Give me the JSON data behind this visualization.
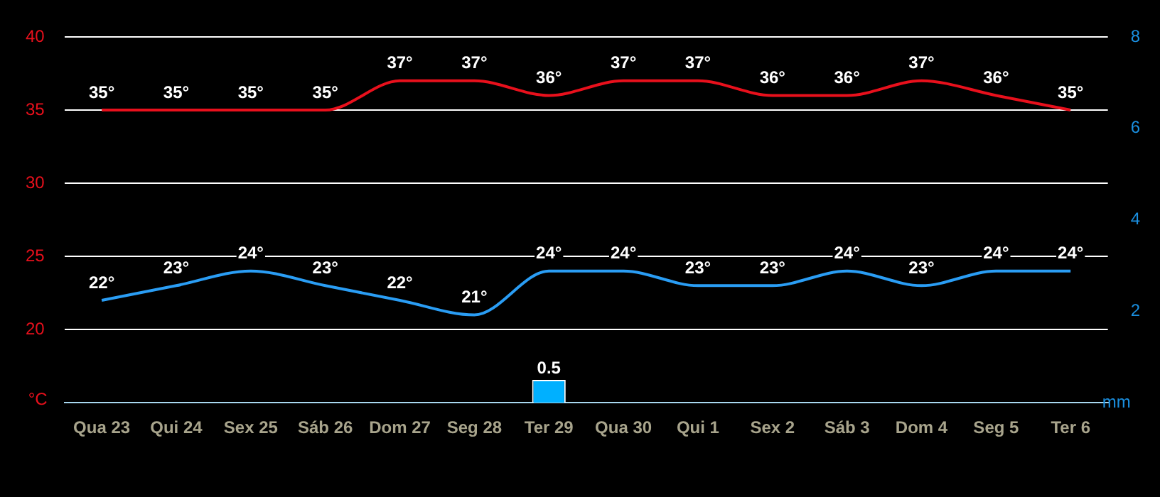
{
  "chart_data": {
    "type": "line",
    "ylabel": "°C",
    "y2label": "mm",
    "categories": [
      "Qua 23",
      "Qui 24",
      "Sex 25",
      "Sáb 26",
      "Dom 27",
      "Seg 28",
      "Ter 29",
      "Qua 30",
      "Qui 1",
      "Sex 2",
      "Sáb 3",
      "Dom 4",
      "Seg 5",
      "Ter 6"
    ],
    "series": [
      {
        "color": "#e8101c",
        "values": [
          35,
          35,
          35,
          35,
          37,
          37,
          36,
          37,
          37,
          36,
          36,
          37,
          36,
          35
        ],
        "value_labels": [
          "35°",
          "35°",
          "35°",
          "35°",
          "37°",
          "37°",
          "36°",
          "37°",
          "37°",
          "36°",
          "36°",
          "37°",
          "36°",
          "35°"
        ]
      },
      {
        "color": "#2a9df4",
        "values": [
          22,
          23,
          24,
          23,
          22,
          21,
          24,
          24,
          23,
          23,
          24,
          23,
          24,
          24
        ],
        "value_labels": [
          "22°",
          "23°",
          "24°",
          "23°",
          "22°",
          "21°",
          "24°",
          "24°",
          "23°",
          "23°",
          "24°",
          "23°",
          "24°",
          "24°"
        ]
      },
      {
        "type": "bar",
        "axis": "y2",
        "color": "#00b0ff",
        "values": [
          null,
          null,
          null,
          null,
          null,
          null,
          0.5,
          null,
          null,
          null,
          null,
          null,
          null,
          null
        ],
        "value_labels": [
          null,
          null,
          null,
          null,
          null,
          null,
          "0.5",
          null,
          null,
          null,
          null,
          null,
          null,
          null
        ]
      }
    ],
    "ylim": [
      15,
      40
    ],
    "yticks": [
      20,
      25,
      30,
      35,
      40
    ],
    "y2lim": [
      0,
      8
    ],
    "y2ticks": [
      2,
      4,
      6,
      8
    ],
    "grid": "y",
    "legend": false,
    "marker": "none",
    "line_style": "solid"
  }
}
